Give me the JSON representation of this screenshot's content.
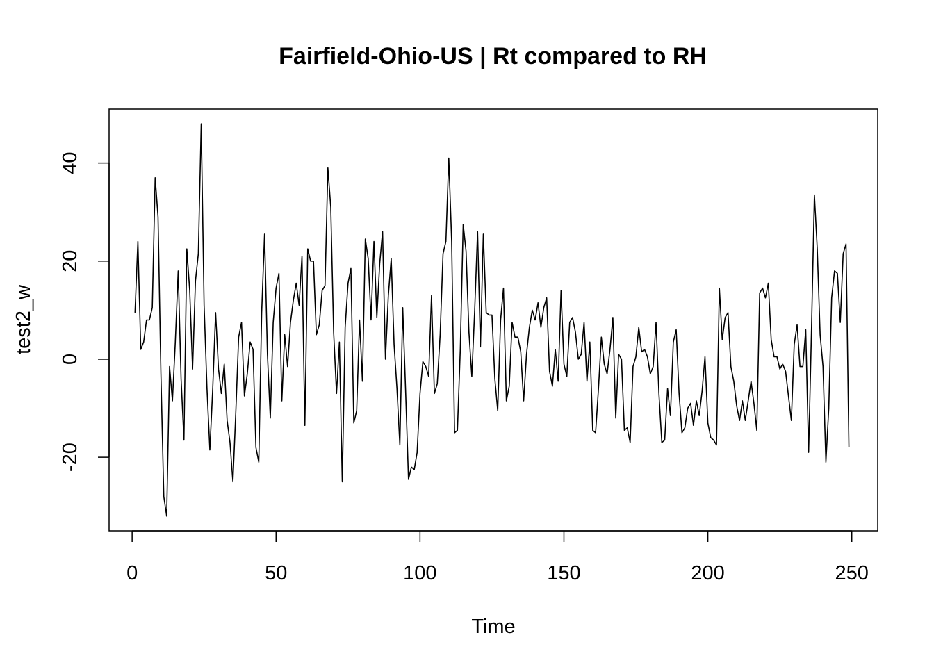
{
  "chart_data": {
    "type": "line",
    "title": "Fairfield-Ohio-US | Rt compared to RH",
    "xlabel": "Time",
    "ylabel": "test2_w",
    "xlim": [
      -8,
      259
    ],
    "ylim": [
      -35,
      51
    ],
    "x_ticks": [
      0,
      50,
      100,
      150,
      200,
      250
    ],
    "y_ticks": [
      -20,
      0,
      20,
      40
    ],
    "grid": false,
    "legend": "none",
    "line_color": "#000000",
    "x_start": 1,
    "values": [
      9.5,
      24,
      2,
      3.5,
      8,
      8,
      10.5,
      37,
      29,
      -3,
      -28,
      -32,
      -1.5,
      -8.5,
      3.5,
      18,
      -4,
      -16.5,
      22.5,
      14,
      -2,
      16,
      21.5,
      48,
      11,
      -6,
      -18.5,
      -6,
      9.5,
      -2,
      -7,
      -1,
      -12.5,
      -17,
      -25,
      -11,
      4.5,
      7.5,
      -7.5,
      -3,
      3.5,
      2,
      -18,
      -21,
      9.5,
      25.5,
      1,
      -12,
      7.5,
      14.5,
      17.5,
      -8.5,
      5,
      -1.5,
      7.5,
      12,
      15.5,
      11,
      21,
      -13.5,
      22.5,
      20,
      20,
      5,
      7,
      14,
      15,
      39,
      31,
      5.5,
      -7,
      3.5,
      -25,
      6.5,
      15.5,
      18.5,
      -13,
      -10.5,
      8,
      -4.5,
      24.5,
      20.5,
      8,
      24,
      8.5,
      19.5,
      26,
      0,
      13,
      20.5,
      3,
      -6,
      -17.5,
      10.5,
      -6.5,
      -24.5,
      -22,
      -22.5,
      -19,
      -7,
      -0.5,
      -1.5,
      -3.5,
      13,
      -7,
      -5,
      5,
      21.5,
      24,
      41,
      24,
      -15,
      -14.5,
      2,
      27.5,
      22,
      5.5,
      -3.5,
      10,
      26,
      2.5,
      25.5,
      9.5,
      9,
      9,
      -4,
      -10.5,
      8,
      14.5,
      -8.5,
      -5.5,
      7.5,
      4.5,
      4.5,
      1.5,
      -8.5,
      1,
      6.5,
      10,
      8,
      11.5,
      6.5,
      10.5,
      12.5,
      -2.5,
      -5.5,
      2,
      -4.5,
      14,
      -1,
      -3.5,
      7.5,
      8.5,
      5.5,
      0,
      1,
      7.5,
      -4.5,
      3.5,
      -14.5,
      -15,
      -6,
      4.5,
      -1,
      -3,
      2,
      8.5,
      -12,
      1,
      0,
      -14.5,
      -14,
      -17,
      -1.5,
      0.5,
      6.5,
      1.5,
      2,
      0.5,
      -3,
      -1.5,
      7.5,
      -7,
      -17,
      -16.5,
      -6,
      -11.5,
      3.5,
      6,
      -7,
      -15,
      -14,
      -10,
      -9,
      -13.5,
      -8.5,
      -11.5,
      -6.5,
      0.5,
      -13,
      -16,
      -16.5,
      -17.5,
      14.5,
      4,
      8.5,
      9.5,
      -1.5,
      -4.5,
      -9.5,
      -12.5,
      -8.5,
      -12.5,
      -8.5,
      -4.5,
      -9,
      -14.5,
      13.5,
      14.5,
      12.5,
      15.5,
      4,
      0.5,
      0.5,
      -2,
      -1,
      -2.5,
      -7.5,
      -12.5,
      3,
      7,
      -1.5,
      -1.5,
      6,
      -19,
      6,
      33.5,
      22.5,
      5,
      -1.5,
      -21,
      -10,
      12.5,
      18,
      17.5,
      7.5,
      21.5,
      23.5,
      -18
    ]
  }
}
